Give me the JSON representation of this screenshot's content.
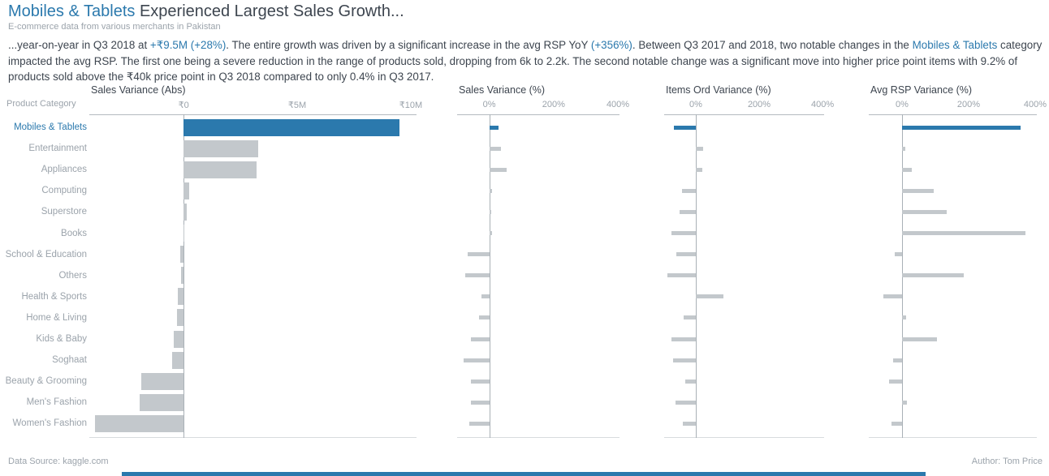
{
  "header": {
    "title_highlight": "Mobiles & Tablets",
    "title_rest": " Experienced Largest Sales Growth...",
    "subtitle": "E-commerce data from various merchants in Pakistan"
  },
  "narrative_segments": [
    {
      "text": "...year-on-year in Q3 2018 at ",
      "highlight": false
    },
    {
      "text": "+₹9.5M (+28%)",
      "highlight": true
    },
    {
      "text": ". The entire growth was driven by a significant increase in the avg RSP YoY ",
      "highlight": false
    },
    {
      "text": "(+356%)",
      "highlight": true
    },
    {
      "text": ". Between Q3 2017 and 2018, two notable changes in the ",
      "highlight": false
    },
    {
      "text": "Mobiles & Tablets",
      "highlight": true
    },
    {
      "text": " category impacted the avg RSP. The first one being a severe reduction in the range of products sold, dropping from 6k to 2.2k. The second notable change was a significant move into higher price point items with 9.2% of products sold above the ₹40k price point in Q3 2018 compared to only 0.4% in Q3 2017.",
      "highlight": false
    }
  ],
  "row_label_header": "Product Category",
  "footer": {
    "source": "Data Source: kaggle.com",
    "author": "Author: Tom Price"
  },
  "colors": {
    "accent_blue": "#2b79ad",
    "bar_gray": "#c3c8cc",
    "text_dark": "#3d454f",
    "text_gray": "#9ba3ab"
  },
  "chart_data": {
    "type": "bar",
    "orientation": "horizontal",
    "categories": [
      "Mobiles & Tablets",
      "Entertainment",
      "Appliances",
      "Computing",
      "Superstore",
      "Books",
      "School & Education",
      "Others",
      "Health & Sports",
      "Home & Living",
      "Kids & Baby",
      "Soghaat",
      "Beauty & Grooming",
      "Men's Fashion",
      "Women's Fashion"
    ],
    "highlight_category": "Mobiles & Tablets",
    "charts": [
      {
        "title": "Sales Variance (Abs)",
        "unit": "₹M",
        "tick_labels": [
          "₹0",
          "₹5M",
          "₹10M"
        ],
        "tick_values": [
          0,
          5,
          10
        ],
        "xlim": [
          -4.15,
          10.25
        ],
        "values": [
          9.5,
          3.3,
          3.2,
          0.25,
          0.15,
          0.02,
          -0.15,
          -0.1,
          -0.25,
          -0.3,
          -0.45,
          -0.5,
          -1.85,
          -1.95,
          -3.9
        ]
      },
      {
        "title": "Sales Variance (%)",
        "unit": "%",
        "tick_labels": [
          "0%",
          "200%",
          "400%"
        ],
        "tick_values": [
          0,
          200,
          400
        ],
        "xlim": [
          -100,
          405
        ],
        "values": [
          28,
          36,
          54,
          8,
          5,
          8,
          -67,
          -75,
          -25,
          -31,
          -56,
          -79,
          -57,
          -57,
          -62
        ]
      },
      {
        "title": "Items Ord Variance (%)",
        "unit": "%",
        "tick_labels": [
          "0%",
          "200%",
          "400%"
        ],
        "tick_values": [
          0,
          200,
          400
        ],
        "xlim": [
          -100,
          405
        ],
        "values": [
          -70,
          23,
          20,
          -44,
          -52,
          -78,
          -62,
          -91,
          87,
          -39,
          -78,
          -73,
          -33,
          -64,
          -42
        ]
      },
      {
        "title": "Avg RSP Variance (%)",
        "unit": "%",
        "tick_labels": [
          "0%",
          "200%",
          "400%"
        ],
        "tick_values": [
          0,
          200,
          400
        ],
        "xlim": [
          -100,
          405
        ],
        "values": [
          356,
          10,
          30,
          95,
          135,
          370,
          -21,
          185,
          -57,
          13,
          105,
          -27,
          -39,
          15,
          -31
        ]
      }
    ]
  }
}
